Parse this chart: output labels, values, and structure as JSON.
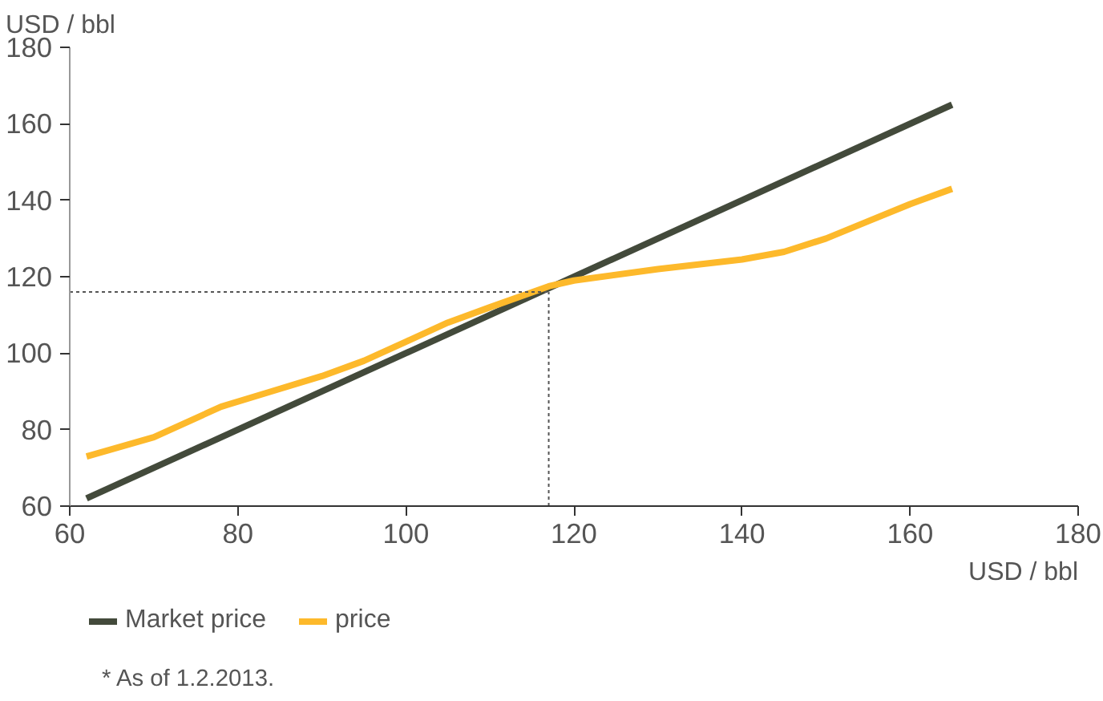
{
  "chart_data": {
    "type": "line",
    "xlabel": "USD / bbl",
    "ylabel": "USD / bbl",
    "xlim": [
      60,
      180
    ],
    "ylim": [
      60,
      180
    ],
    "xticks": [
      60,
      80,
      100,
      120,
      140,
      160,
      180
    ],
    "yticks": [
      60,
      80,
      100,
      120,
      140,
      160,
      180
    ],
    "grid": false,
    "legend": "bottom",
    "line_style": "solid",
    "marker": "none",
    "series": [
      {
        "name": "Market price",
        "color": "#434a3b",
        "x": [
          62,
          165
        ],
        "values": [
          62,
          165
        ]
      },
      {
        "name": "price",
        "color": "#fdb92b",
        "x": [
          62,
          70,
          78,
          84,
          90,
          95,
          100,
          105,
          110,
          117,
          120,
          130,
          140,
          145,
          150,
          155,
          160,
          165
        ],
        "values": [
          73,
          78,
          86,
          90,
          94,
          98,
          103,
          108,
          112,
          117.5,
          119,
          122,
          124.5,
          126.5,
          130,
          134.5,
          139,
          143
        ]
      }
    ],
    "ref_lines": [
      {
        "axis": "x",
        "value": 117,
        "color": "#555555",
        "line_style": "dotted"
      },
      {
        "axis": "y",
        "value": 116,
        "color": "#555555",
        "line_style": "dotted"
      }
    ],
    "annotations": [
      "* As of 1.2.2013."
    ]
  }
}
